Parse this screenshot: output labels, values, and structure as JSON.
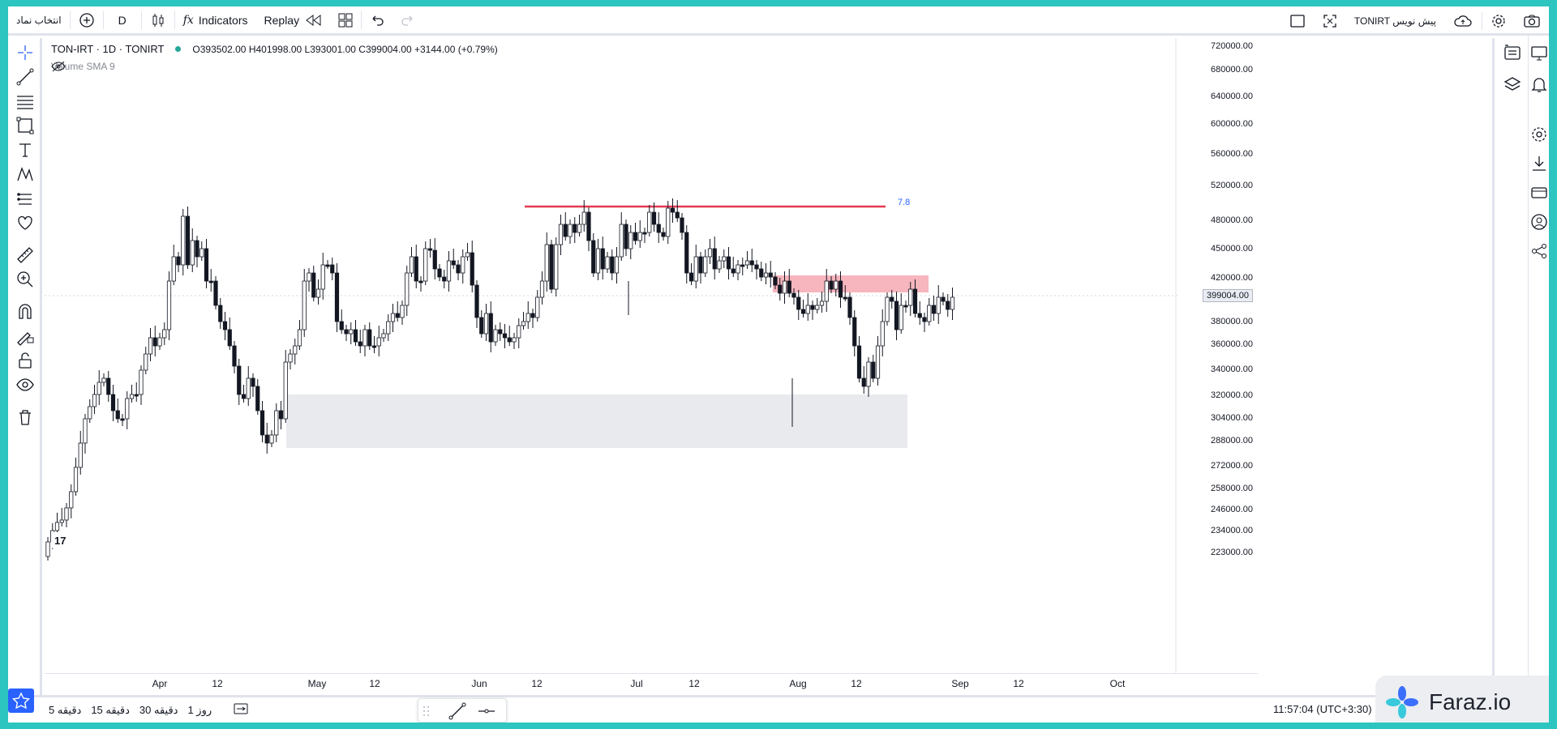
{
  "toolbar": {
    "symbol_search_label": "انتخاب نماد",
    "interval": "D",
    "indicators_label": "Indicators",
    "replay_label": "Replay",
    "symbol_right": "TONIRT پیش نویس"
  },
  "chart": {
    "title": "TON-IRT · 1D · TONIRT",
    "ohlc": "O393502.00 H401998.00 L393001.00 C399004.00 +3144.00 (+0.79%)",
    "volume_label": "Volume SMA 9",
    "annotation": "7.8",
    "current_price": "399004.00",
    "price_ticks": [
      "720000.00",
      "680000.00",
      "640000.00",
      "600000.00",
      "560000.00",
      "520000.00",
      "480000.00",
      "450000.00",
      "420000.00",
      "380000.00",
      "360000.00",
      "340000.00",
      "320000.00",
      "304000.00",
      "288000.00",
      "272000.00",
      "258000.00",
      "246000.00",
      "234000.00",
      "223000.00"
    ],
    "time_ticks": [
      "Apr",
      "12",
      "May",
      "12",
      "Jun",
      "12",
      "Jul",
      "12",
      "Aug",
      "12",
      "Sep",
      "12",
      "Oct"
    ],
    "colors": {
      "resistance_line": "#e53950",
      "supply_zone": "#f7b5bd",
      "demand_zone": "#e9eaee",
      "annotation": "#2962ff"
    }
  },
  "bottombar": {
    "intervals": [
      "5 دقیقه",
      "15 دقیقه",
      "30 دقیقه",
      "1 روز"
    ],
    "clock": "11:57:04 (UTC+3:30)"
  },
  "brand": {
    "name": "Faraz.io"
  }
}
